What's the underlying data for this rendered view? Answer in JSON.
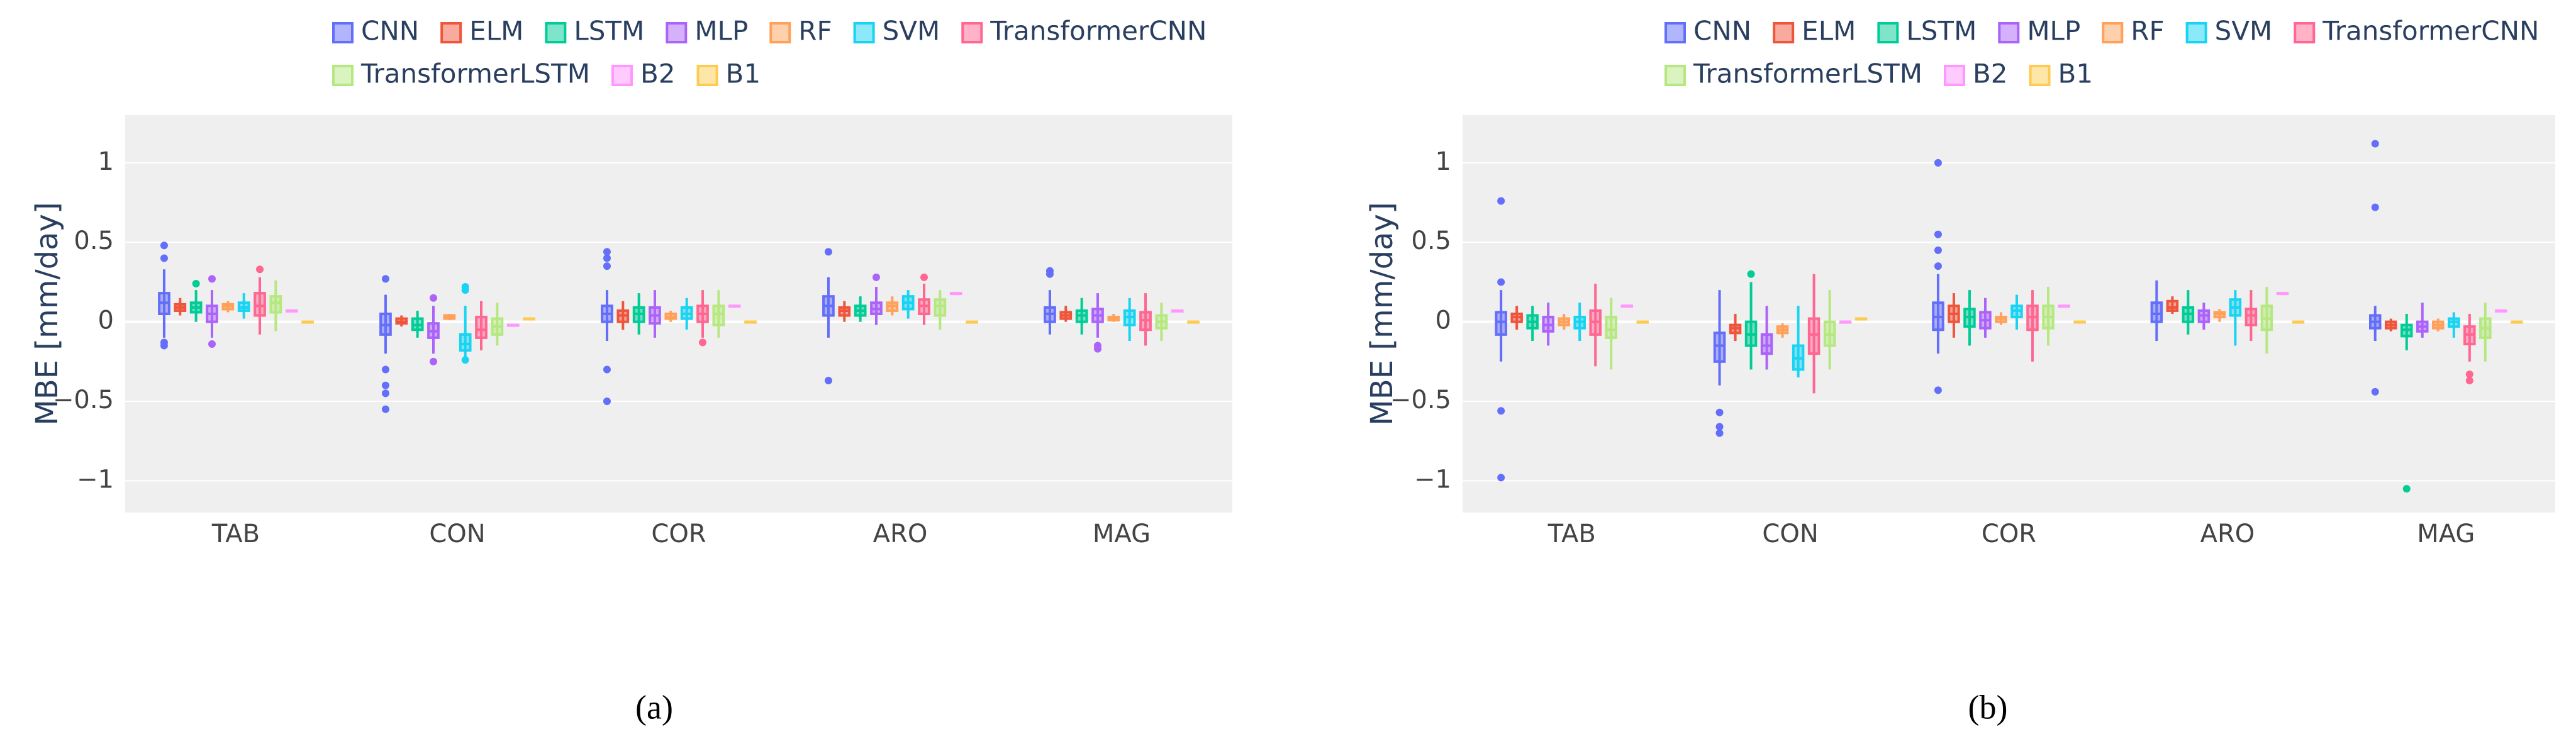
{
  "chart_data": [
    {
      "type": "box",
      "ylabel": "MBE [mm/day]",
      "caption": "(a)",
      "categories": [
        "TAB",
        "CON",
        "COR",
        "ARO",
        "MAG"
      ],
      "ylim": [
        -1.2,
        1.3
      ],
      "yticks": [
        {
          "value": -1,
          "label": "−1"
        },
        {
          "value": -0.5,
          "label": "−0.5"
        },
        0,
        0.5,
        1
      ],
      "grid": true,
      "series": [
        {
          "name": "CNN",
          "color": "#636efa",
          "boxes": [
            [
              -0.1,
              0.05,
              0.12,
              0.18,
              0.33
            ],
            [
              -0.2,
              -0.08,
              -0.02,
              0.05,
              0.17
            ],
            [
              -0.12,
              0.0,
              0.05,
              0.1,
              0.2
            ],
            [
              -0.1,
              0.04,
              0.1,
              0.16,
              0.28
            ],
            [
              -0.08,
              0.0,
              0.05,
              0.09,
              0.2
            ]
          ],
          "outliers": [
            [
              0.48,
              0.4,
              -0.13,
              -0.15
            ],
            [
              0.27,
              -0.3,
              -0.4,
              -0.45,
              -0.55
            ],
            [
              0.44,
              0.4,
              0.35,
              -0.3,
              -0.5
            ],
            [
              0.44,
              -0.37
            ],
            [
              0.3,
              0.32
            ]
          ]
        },
        {
          "name": "ELM",
          "color": "#ef553b",
          "boxes": [
            [
              0.04,
              0.07,
              0.09,
              0.11,
              0.15
            ],
            [
              -0.03,
              -0.01,
              0.0,
              0.02,
              0.04
            ],
            [
              -0.05,
              0.0,
              0.04,
              0.07,
              0.13
            ],
            [
              0.0,
              0.04,
              0.07,
              0.09,
              0.13
            ],
            [
              0.0,
              0.02,
              0.04,
              0.06,
              0.1
            ]
          ],
          "outliers": [
            [],
            [],
            [],
            [],
            []
          ]
        },
        {
          "name": "LSTM",
          "color": "#00cc96",
          "boxes": [
            [
              0.0,
              0.06,
              0.09,
              0.12,
              0.2
            ],
            [
              -0.1,
              -0.05,
              -0.02,
              0.02,
              0.07
            ],
            [
              -0.08,
              0.0,
              0.05,
              0.09,
              0.18
            ],
            [
              0.0,
              0.04,
              0.07,
              0.1,
              0.16
            ],
            [
              -0.08,
              0.0,
              0.04,
              0.07,
              0.15
            ]
          ],
          "outliers": [
            [
              0.24
            ],
            [],
            [],
            [],
            []
          ]
        },
        {
          "name": "MLP",
          "color": "#ab63fa",
          "boxes": [
            [
              -0.1,
              0.0,
              0.05,
              0.1,
              0.2
            ],
            [
              -0.2,
              -0.1,
              -0.06,
              -0.01,
              0.1
            ],
            [
              -0.1,
              -0.01,
              0.04,
              0.09,
              0.2
            ],
            [
              -0.02,
              0.05,
              0.08,
              0.12,
              0.22
            ],
            [
              -0.1,
              0.0,
              0.04,
              0.08,
              0.18
            ]
          ],
          "outliers": [
            [
              0.27,
              -0.14
            ],
            [
              0.15,
              -0.25
            ],
            [],
            [
              0.28
            ],
            [
              -0.15,
              -0.17
            ]
          ]
        },
        {
          "name": "RF",
          "color": "#ffa15a",
          "boxes": [
            [
              0.06,
              0.08,
              0.1,
              0.11,
              0.13
            ],
            [
              0.01,
              0.02,
              0.03,
              0.04,
              0.05
            ],
            [
              0.0,
              0.02,
              0.03,
              0.05,
              0.07
            ],
            [
              0.04,
              0.07,
              0.1,
              0.12,
              0.16
            ],
            [
              0.0,
              0.01,
              0.02,
              0.03,
              0.05
            ]
          ],
          "outliers": [
            [],
            [],
            [],
            [],
            []
          ]
        },
        {
          "name": "SVM",
          "color": "#19d3f3",
          "boxes": [
            [
              0.02,
              0.07,
              0.09,
              0.12,
              0.18
            ],
            [
              -0.22,
              -0.18,
              -0.14,
              -0.08,
              0.1
            ],
            [
              -0.05,
              0.02,
              0.05,
              0.09,
              0.15
            ],
            [
              0.02,
              0.08,
              0.12,
              0.16,
              0.2
            ],
            [
              -0.12,
              -0.02,
              0.03,
              0.07,
              0.15
            ]
          ],
          "outliers": [
            [],
            [
              0.2,
              0.22,
              -0.24
            ],
            [],
            [],
            []
          ]
        },
        {
          "name": "TransformerCNN",
          "color": "#ff6692",
          "boxes": [
            [
              -0.08,
              0.04,
              0.1,
              0.18,
              0.28
            ],
            [
              -0.18,
              -0.1,
              -0.05,
              0.03,
              0.13
            ],
            [
              -0.1,
              0.0,
              0.05,
              0.1,
              0.2
            ],
            [
              -0.02,
              0.05,
              0.1,
              0.14,
              0.24
            ],
            [
              -0.15,
              -0.05,
              0.01,
              0.06,
              0.18
            ]
          ],
          "outliers": [
            [
              0.33
            ],
            [],
            [
              -0.13
            ],
            [
              0.28
            ],
            []
          ]
        },
        {
          "name": "TransformerLSTM",
          "color": "#b6e880",
          "boxes": [
            [
              -0.06,
              0.06,
              0.12,
              0.16,
              0.26
            ],
            [
              -0.15,
              -0.08,
              -0.03,
              0.02,
              0.12
            ],
            [
              -0.1,
              -0.02,
              0.05,
              0.1,
              0.2
            ],
            [
              -0.05,
              0.04,
              0.1,
              0.14,
              0.2
            ],
            [
              -0.12,
              -0.04,
              0.0,
              0.04,
              0.12
            ]
          ],
          "outliers": [
            [],
            [],
            [],
            [],
            []
          ]
        },
        {
          "name": "B2",
          "color": "#ff97ff",
          "boxes": [
            [
              0.07,
              0.07,
              0.07,
              0.07,
              0.07
            ],
            [
              -0.02,
              -0.02,
              -0.02,
              -0.02,
              -0.02
            ],
            [
              0.1,
              0.1,
              0.1,
              0.1,
              0.1
            ],
            [
              0.18,
              0.18,
              0.18,
              0.18,
              0.18
            ],
            [
              0.07,
              0.07,
              0.07,
              0.07,
              0.07
            ]
          ],
          "outliers": [
            [],
            [],
            [],
            [],
            []
          ]
        },
        {
          "name": "B1",
          "color": "#fecb52",
          "boxes": [
            [
              0,
              0,
              0,
              0,
              0
            ],
            [
              0.02,
              0.02,
              0.02,
              0.02,
              0.02
            ],
            [
              0,
              0,
              0,
              0,
              0
            ],
            [
              0,
              0,
              0,
              0,
              0
            ],
            [
              0,
              0,
              0,
              0,
              0
            ]
          ],
          "outliers": [
            [],
            [],
            [],
            [],
            []
          ]
        }
      ]
    },
    {
      "type": "box",
      "ylabel": "MBE [mm/day]",
      "caption": "(b)",
      "categories": [
        "TAB",
        "CON",
        "COR",
        "ARO",
        "MAG"
      ],
      "ylim": [
        -1.2,
        1.3
      ],
      "yticks": [
        {
          "value": -1,
          "label": "−1"
        },
        {
          "value": -0.5,
          "label": "−0.5"
        },
        0,
        0.5,
        1
      ],
      "grid": true,
      "series": [
        {
          "name": "CNN",
          "color": "#636efa",
          "boxes": [
            [
              -0.25,
              -0.08,
              0.0,
              0.06,
              0.2
            ],
            [
              -0.4,
              -0.25,
              -0.15,
              -0.07,
              0.2
            ],
            [
              -0.2,
              -0.05,
              0.03,
              0.12,
              0.3
            ],
            [
              -0.12,
              0.0,
              0.05,
              0.12,
              0.26
            ],
            [
              -0.12,
              -0.04,
              0.0,
              0.04,
              0.1
            ]
          ],
          "outliers": [
            [
              0.76,
              0.25,
              -0.56,
              -0.98
            ],
            [
              -0.57,
              -0.66,
              -0.7
            ],
            [
              1.0,
              0.55,
              0.45,
              0.35,
              -0.43
            ],
            [],
            [
              1.12,
              0.72,
              -0.44
            ]
          ]
        },
        {
          "name": "ELM",
          "color": "#ef553b",
          "boxes": [
            [
              -0.05,
              0.0,
              0.03,
              0.05,
              0.1
            ],
            [
              -0.12,
              -0.07,
              -0.04,
              -0.02,
              0.05
            ],
            [
              -0.1,
              0.0,
              0.05,
              0.1,
              0.18
            ],
            [
              0.05,
              0.07,
              0.09,
              0.13,
              0.16
            ],
            [
              -0.06,
              -0.04,
              -0.02,
              0.0,
              0.02
            ]
          ],
          "outliers": [
            [],
            [],
            [],
            [],
            []
          ]
        },
        {
          "name": "LSTM",
          "color": "#00cc96",
          "boxes": [
            [
              -0.12,
              -0.04,
              0.0,
              0.04,
              0.1
            ],
            [
              -0.3,
              -0.15,
              -0.08,
              0.0,
              0.25
            ],
            [
              -0.15,
              -0.03,
              0.03,
              0.08,
              0.2
            ],
            [
              -0.08,
              0.0,
              0.05,
              0.09,
              0.2
            ],
            [
              -0.18,
              -0.09,
              -0.05,
              -0.02,
              0.05
            ]
          ],
          "outliers": [
            [],
            [
              0.3
            ],
            [],
            [],
            [
              -1.05
            ]
          ]
        },
        {
          "name": "MLP",
          "color": "#ab63fa",
          "boxes": [
            [
              -0.15,
              -0.06,
              -0.02,
              0.03,
              0.12
            ],
            [
              -0.3,
              -0.2,
              -0.15,
              -0.08,
              0.1
            ],
            [
              -0.1,
              -0.04,
              0.01,
              0.06,
              0.15
            ],
            [
              -0.05,
              0.0,
              0.04,
              0.07,
              0.12
            ],
            [
              -0.1,
              -0.06,
              -0.03,
              0.0,
              0.12
            ]
          ],
          "outliers": [
            [],
            [],
            [],
            [],
            []
          ]
        },
        {
          "name": "RF",
          "color": "#ffa15a",
          "boxes": [
            [
              -0.05,
              -0.02,
              0.0,
              0.02,
              0.05
            ],
            [
              -0.1,
              -0.07,
              -0.05,
              -0.03,
              -0.01
            ],
            [
              -0.02,
              0.0,
              0.02,
              0.03,
              0.06
            ],
            [
              0.0,
              0.03,
              0.05,
              0.06,
              0.08
            ],
            [
              -0.06,
              -0.04,
              -0.02,
              0.0,
              0.02
            ]
          ],
          "outliers": [
            [],
            [],
            [],
            [],
            []
          ]
        },
        {
          "name": "SVM",
          "color": "#19d3f3",
          "boxes": [
            [
              -0.12,
              -0.04,
              0.0,
              0.03,
              0.12
            ],
            [
              -0.35,
              -0.3,
              -0.23,
              -0.15,
              0.1
            ],
            [
              -0.05,
              0.03,
              0.07,
              0.1,
              0.17
            ],
            [
              -0.15,
              0.04,
              0.09,
              0.14,
              0.2
            ],
            [
              -0.1,
              -0.03,
              0.0,
              0.02,
              0.06
            ]
          ],
          "outliers": [
            [],
            [],
            [],
            [],
            []
          ]
        },
        {
          "name": "TransformerCNN",
          "color": "#ff6692",
          "boxes": [
            [
              -0.28,
              -0.08,
              0.0,
              0.07,
              0.24
            ],
            [
              -0.45,
              -0.2,
              -0.08,
              0.02,
              0.3
            ],
            [
              -0.25,
              -0.05,
              0.03,
              0.1,
              0.2
            ],
            [
              -0.12,
              -0.02,
              0.04,
              0.08,
              0.2
            ],
            [
              -0.25,
              -0.14,
              -0.08,
              -0.03,
              0.05
            ]
          ],
          "outliers": [
            [],
            [],
            [],
            [],
            [
              -0.33,
              -0.37
            ]
          ]
        },
        {
          "name": "TransformerLSTM",
          "color": "#b6e880",
          "boxes": [
            [
              -0.3,
              -0.1,
              -0.05,
              0.03,
              0.15
            ],
            [
              -0.3,
              -0.15,
              -0.08,
              0.0,
              0.2
            ],
            [
              -0.15,
              -0.04,
              0.03,
              0.1,
              0.22
            ],
            [
              -0.2,
              -0.05,
              0.02,
              0.1,
              0.22
            ],
            [
              -0.25,
              -0.1,
              -0.04,
              0.02,
              0.12
            ]
          ],
          "outliers": [
            [],
            [],
            [],
            [],
            []
          ]
        },
        {
          "name": "B2",
          "color": "#ff97ff",
          "boxes": [
            [
              0.1,
              0.1,
              0.1,
              0.1,
              0.1
            ],
            [
              0,
              0,
              0,
              0,
              0
            ],
            [
              0.1,
              0.1,
              0.1,
              0.1,
              0.1
            ],
            [
              0.18,
              0.18,
              0.18,
              0.18,
              0.18
            ],
            [
              0.07,
              0.07,
              0.07,
              0.07,
              0.07
            ]
          ],
          "outliers": [
            [],
            [],
            [],
            [],
            []
          ]
        },
        {
          "name": "B1",
          "color": "#fecb52",
          "boxes": [
            [
              0,
              0,
              0,
              0,
              0
            ],
            [
              0.02,
              0.02,
              0.02,
              0.02,
              0.02
            ],
            [
              0,
              0,
              0,
              0,
              0
            ],
            [
              0,
              0,
              0,
              0,
              0
            ],
            [
              0,
              0,
              0,
              0,
              0
            ]
          ],
          "outliers": [
            [],
            [],
            [],
            [],
            []
          ]
        }
      ]
    }
  ]
}
